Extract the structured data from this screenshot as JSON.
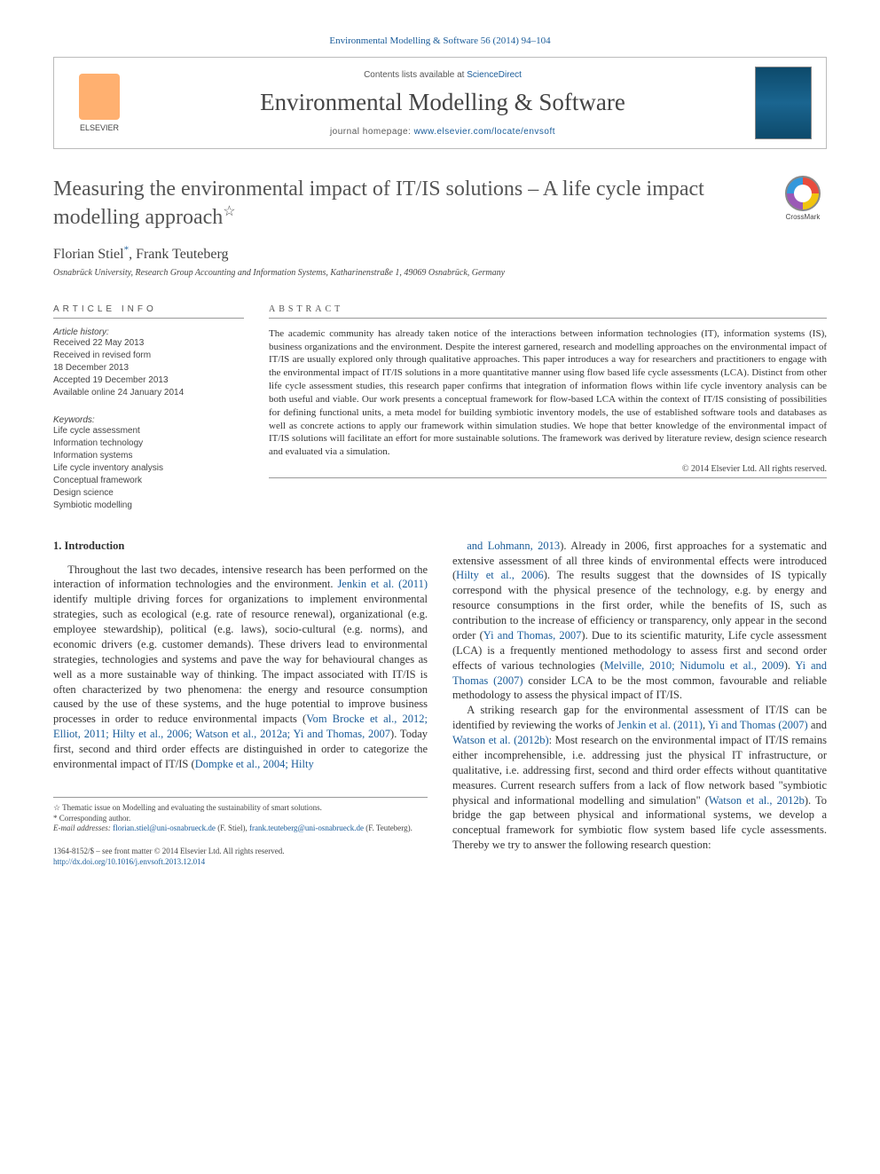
{
  "topCitation": "Environmental Modelling & Software 56 (2014) 94–104",
  "header": {
    "contentsPrefix": "Contents lists available at ",
    "contentsLink": "ScienceDirect",
    "journalName": "Environmental Modelling & Software",
    "homepagePrefix": "journal homepage: ",
    "homepageUrl": "www.elsevier.com/locate/envsoft",
    "publisherLabel": "ELSEVIER"
  },
  "title": "Measuring the environmental impact of IT/IS solutions – A life cycle impact modelling approach",
  "titleStar": "☆",
  "crossmarkLabel": "CrossMark",
  "authors": "Florian Stiel*, Frank Teuteberg",
  "affiliation": "Osnabrück University, Research Group Accounting and Information Systems, Katharinenstraße 1, 49069 Osnabrück, Germany",
  "articleInfo": {
    "heading": "ARTICLE INFO",
    "historyLabel": "Article history:",
    "history": "Received 22 May 2013\nReceived in revised form\n18 December 2013\nAccepted 19 December 2013\nAvailable online 24 January 2014",
    "keywordsLabel": "Keywords:",
    "keywords": "Life cycle assessment\nInformation technology\nInformation systems\nLife cycle inventory analysis\nConceptual framework\nDesign science\nSymbiotic modelling"
  },
  "abstract": {
    "heading": "ABSTRACT",
    "body": "The academic community has already taken notice of the interactions between information technologies (IT), information systems (IS), business organizations and the environment. Despite the interest garnered, research and modelling approaches on the environmental impact of IT/IS are usually explored only through qualitative approaches. This paper introduces a way for researchers and practitioners to engage with the environmental impact of IT/IS solutions in a more quantitative manner using flow based life cycle assessments (LCA). Distinct from other life cycle assessment studies, this research paper confirms that integration of information flows within life cycle inventory analysis can be both useful and viable. Our work presents a conceptual framework for flow-based LCA within the context of IT/IS consisting of possibilities for defining functional units, a meta model for building symbiotic inventory models, the use of established software tools and databases as well as concrete actions to apply our framework within simulation studies. We hope that better knowledge of the environmental impact of IT/IS solutions will facilitate an effort for more sustainable solutions. The framework was derived by literature review, design science research and evaluated via a simulation.",
    "copyright": "© 2014 Elsevier Ltd. All rights reserved."
  },
  "section1": {
    "heading": "1. Introduction",
    "leftCol": "Throughout the last two decades, intensive research has been performed on the interaction of information technologies and the environment. <span class=\"cite\">Jenkin et al. (2011)</span> identify multiple driving forces for organizations to implement environmental strategies, such as ecological (e.g. rate of resource renewal), organizational (e.g. employee stewardship), political (e.g. laws), socio-cultural (e.g. norms), and economic drivers (e.g. customer demands). These drivers lead to environmental strategies, technologies and systems and pave the way for behavioural changes as well as a more sustainable way of thinking. The impact associated with IT/IS is often characterized by two phenomena: the energy and resource consumption caused by the use of these systems, and the huge potential to improve business processes in order to reduce environmental impacts (<span class=\"cite\">Vom Brocke et al., 2012; Elliot, 2011; Hilty et al., 2006; Watson et al., 2012a; Yi and Thomas, 2007</span>). Today first, second and third order effects are distinguished in order to categorize the environmental impact of IT/IS (<span class=\"cite\">Dompke et al., 2004; Hilty</span>",
    "rightCol": "<span class=\"cite\">and Lohmann, 2013</span>). Already in 2006, first approaches for a systematic and extensive assessment of all three kinds of environmental effects were introduced (<span class=\"cite\">Hilty et al., 2006</span>). The results suggest that the downsides of IS typically correspond with the physical presence of the technology, e.g. by energy and resource consumptions in the first order, while the benefits of IS, such as contribution to the increase of efficiency or transparency, only appear in the second order (<span class=\"cite\">Yi and Thomas, 2007</span>). Due to its scientific maturity, Life cycle assessment (LCA) is a frequently mentioned methodology to assess first and second order effects of various technologies (<span class=\"cite\">Melville, 2010; Nidumolu et al., 2009</span>). <span class=\"cite\">Yi and Thomas (2007)</span> consider LCA to be the most common, favourable and reliable methodology to assess the physical impact of IT/IS.",
    "rightCol2": "A striking research gap for the environmental assessment of IT/IS can be identified by reviewing the works of <span class=\"cite\">Jenkin et al. (2011)</span>, <span class=\"cite\">Yi and Thomas (2007)</span> and <span class=\"cite\">Watson et al. (2012b)</span>: Most research on the environmental impact of IT/IS remains either incomprehensible, i.e. addressing just the physical IT infrastructure, or qualitative, i.e. addressing first, second and third order effects without quantitative measures. Current research suffers from a lack of flow network based \"symbiotic physical and informational modelling and simulation\" (<span class=\"cite\">Watson et al., 2012b</span>). To bridge the gap between physical and informational systems, we develop a conceptual framework for symbiotic flow system based life cycle assessments. Thereby we try to answer the following research question:"
  },
  "footnotes": {
    "thematic": "☆ Thematic issue on Modelling and evaluating the sustainability of smart solutions.",
    "corresponding": "* Corresponding author.",
    "emailsLabel": "E-mail addresses:",
    "email1": "florian.stiel@uni-osnabrueck.de",
    "email1Attr": " (F. Stiel), ",
    "email2": "frank.teuteberg@uni-osnabrueck.de",
    "email2Attr": " (F. Teuteberg)."
  },
  "footer": {
    "issn": "1364-8152/$ – see front matter © 2014 Elsevier Ltd. All rights reserved.",
    "doi": "http://dx.doi.org/10.1016/j.envsoft.2013.12.014"
  },
  "colors": {
    "link": "#1a5c99",
    "text": "#333333",
    "headingGray": "#555555",
    "borderGray": "#999999",
    "elsevierOrange": "#ffb070",
    "coverBlue": "#0d4a6b"
  },
  "typography": {
    "titleFontSize": 24,
    "journalNameFontSize": 27,
    "authorsFontSize": 16,
    "bodyFontSize": 12.5,
    "metaFontSize": 10,
    "abstractFontSize": 11,
    "footnoteFontSize": 9
  }
}
